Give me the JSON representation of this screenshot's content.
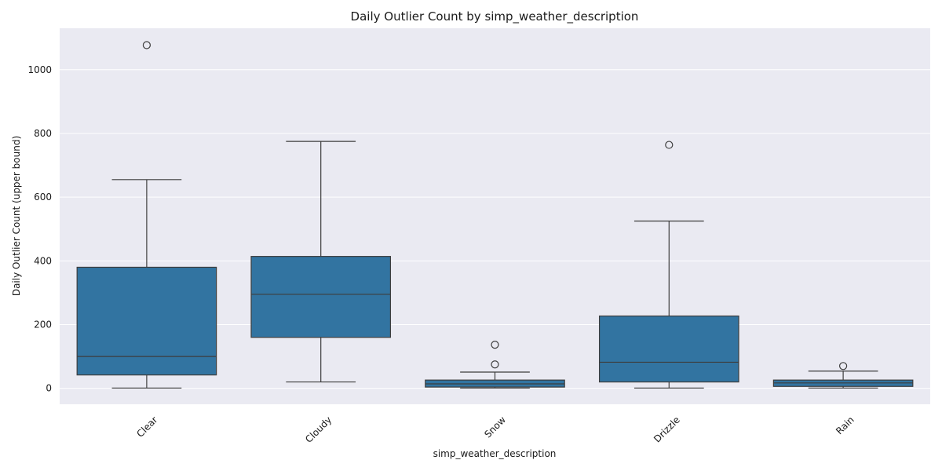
{
  "chart_data": {
    "type": "box",
    "title": "Daily Outlier Count by simp_weather_description",
    "xlabel": "simp_weather_description",
    "ylabel": "Daily Outlier Count (upper bound)",
    "ylim": [
      -50,
      1130
    ],
    "yticks": [
      0,
      200,
      400,
      600,
      800,
      1000
    ],
    "grid": true,
    "categories": [
      "Clear",
      "Cloudy",
      "Snow",
      "Drizzle",
      "Rain"
    ],
    "series": [
      {
        "category": "Clear",
        "whisker_low": 1,
        "q1": 42,
        "median": 100,
        "q3": 380,
        "whisker_high": 655,
        "outliers": [
          1077
        ]
      },
      {
        "category": "Cloudy",
        "whisker_low": 20,
        "q1": 160,
        "median": 295,
        "q3": 414,
        "whisker_high": 775,
        "outliers": []
      },
      {
        "category": "Snow",
        "whisker_low": 1,
        "q1": 4,
        "median": 14,
        "q3": 26,
        "whisker_high": 51,
        "outliers": [
          75,
          137
        ]
      },
      {
        "category": "Drizzle",
        "whisker_low": 1,
        "q1": 20,
        "median": 82,
        "q3": 227,
        "whisker_high": 525,
        "outliers": [
          764
        ]
      },
      {
        "category": "Rain",
        "whisker_low": 1,
        "q1": 6,
        "median": 17,
        "q3": 26,
        "whisker_high": 54,
        "outliers": [
          70
        ]
      }
    ],
    "colors": {
      "box": "#3274a1",
      "line": "#3d3d3d",
      "plot_bg": "#eaeaf2",
      "grid": "#ffffff"
    }
  }
}
